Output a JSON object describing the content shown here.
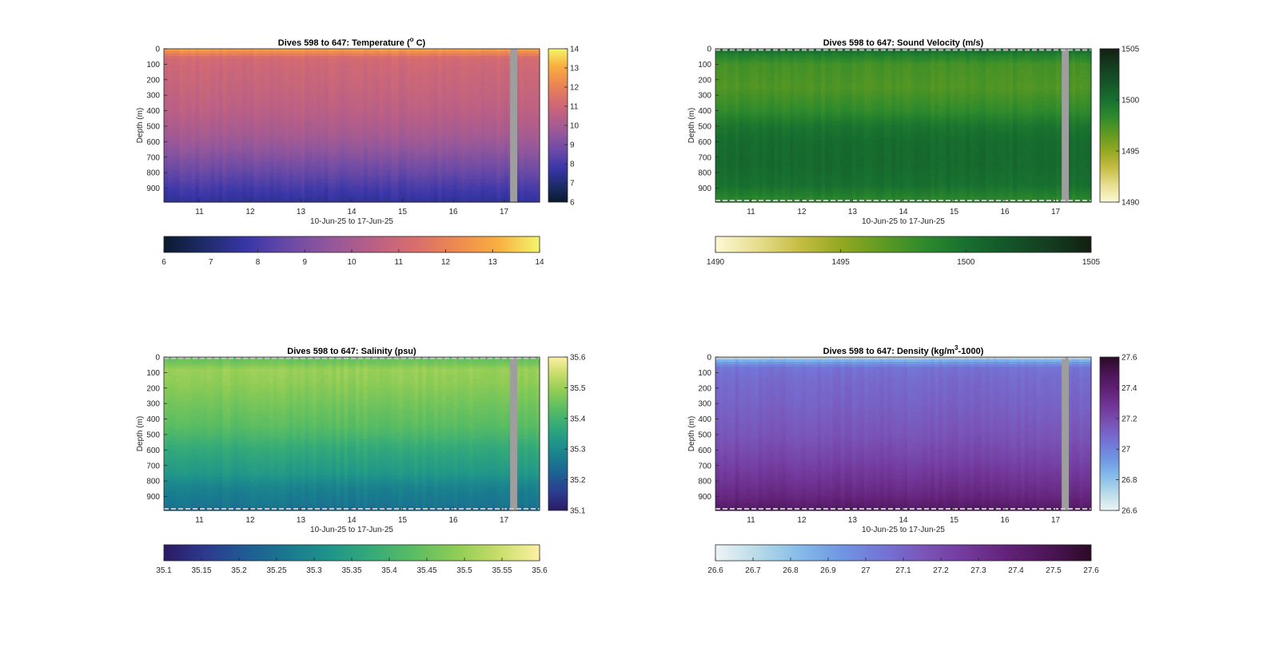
{
  "figure": {
    "background": "#ffffff"
  },
  "chart_data": [
    {
      "type": "heatmap",
      "variable": "temperature",
      "title": "Dives 598 to 647: Temperature (",
      "title_sup": "o",
      "title_end": " C)",
      "xlabel": "10-Jun-25 to 17-Jun-25",
      "ylabel": "Depth (m)",
      "x_ticks": [
        "11",
        "12",
        "13",
        "14",
        "15",
        "16",
        "17"
      ],
      "x_tick_values": [
        11,
        12,
        13,
        14,
        15,
        16,
        17
      ],
      "xlim": [
        10.3,
        17.7
      ],
      "y_ticks": [
        "0",
        "100",
        "200",
        "300",
        "400",
        "500",
        "600",
        "700",
        "800",
        "900"
      ],
      "ylim": [
        0,
        990
      ],
      "y_reversed": true,
      "gap_x_range": [
        17.12,
        17.26
      ],
      "gap_color": "#9e9e9e",
      "clim": [
        6,
        14
      ],
      "colorbar_right_ticks": [
        "6",
        "7",
        "8",
        "9",
        "10",
        "11",
        "12",
        "13",
        "14"
      ],
      "colorbar_bottom_ticks": [
        "6",
        "7",
        "8",
        "9",
        "10",
        "11",
        "12",
        "13",
        "14"
      ],
      "colormap": [
        "#0a1a2e",
        "#1e2c6b",
        "#3a36a8",
        "#6a4aa6",
        "#94579b",
        "#b95f86",
        "#d86d6e",
        "#ee8950",
        "#f8af3f",
        "#f4f56a"
      ],
      "profile": [
        [
          0,
          12.9
        ],
        [
          25,
          12.2
        ],
        [
          60,
          11.2
        ],
        [
          120,
          11.0
        ],
        [
          250,
          10.8
        ],
        [
          400,
          10.5
        ],
        [
          550,
          10.0
        ],
        [
          650,
          9.5
        ],
        [
          750,
          8.9
        ],
        [
          850,
          8.3
        ],
        [
          930,
          7.8
        ],
        [
          990,
          7.5
        ]
      ],
      "dashed_boundaries": false
    },
    {
      "type": "heatmap",
      "variable": "sound_velocity",
      "title": "Dives 598 to 647: Sound Velocity (m/s)",
      "xlabel": "10-Jun-25 to 17-Jun-25",
      "ylabel": "Depth (m)",
      "x_ticks": [
        "11",
        "12",
        "13",
        "14",
        "15",
        "16",
        "17"
      ],
      "x_tick_values": [
        11,
        12,
        13,
        14,
        15,
        16,
        17
      ],
      "xlim": [
        10.3,
        17.7
      ],
      "y_ticks": [
        "0",
        "100",
        "200",
        "300",
        "400",
        "500",
        "600",
        "700",
        "800",
        "900"
      ],
      "ylim": [
        0,
        990
      ],
      "y_reversed": true,
      "gap_x_range": [
        17.12,
        17.26
      ],
      "gap_color": "#9e9e9e",
      "clim": [
        1490,
        1505
      ],
      "colorbar_right_ticks": [
        "1490",
        "1495",
        "1500",
        "1505"
      ],
      "colorbar_bottom_ticks": [
        "1490",
        "1495",
        "1500",
        "1505"
      ],
      "colormap": [
        "#fdf8d5",
        "#e7de8f",
        "#c6bd45",
        "#94a821",
        "#5f9a22",
        "#2e8a2c",
        "#17702f",
        "#145528",
        "#143d20",
        "#121f12"
      ],
      "profile": [
        [
          0,
          1500.6
        ],
        [
          40,
          1499.0
        ],
        [
          100,
          1497.6
        ],
        [
          250,
          1497.2
        ],
        [
          400,
          1498.3
        ],
        [
          500,
          1499.7
        ],
        [
          600,
          1500.3
        ],
        [
          750,
          1500.4
        ],
        [
          880,
          1500.0
        ],
        [
          950,
          1499.0
        ],
        [
          990,
          1498.2
        ]
      ],
      "dashed_boundaries": true
    },
    {
      "type": "heatmap",
      "variable": "salinity",
      "title": "Dives 598 to 647: Salinity (psu)",
      "xlabel": "10-Jun-25 to 17-Jun-25",
      "ylabel": "Depth (m)",
      "x_ticks": [
        "11",
        "12",
        "13",
        "14",
        "15",
        "16",
        "17"
      ],
      "x_tick_values": [
        11,
        12,
        13,
        14,
        15,
        16,
        17
      ],
      "xlim": [
        10.3,
        17.7
      ],
      "y_ticks": [
        "0",
        "100",
        "200",
        "300",
        "400",
        "500",
        "600",
        "700",
        "800",
        "900"
      ],
      "ylim": [
        0,
        990
      ],
      "y_reversed": true,
      "gap_x_range": [
        17.12,
        17.26
      ],
      "gap_color": "#9e9e9e",
      "clim": [
        35.1,
        35.6
      ],
      "colorbar_right_ticks": [
        "35.1",
        "35.2",
        "35.3",
        "35.4",
        "35.5",
        "35.6"
      ],
      "colorbar_bottom_ticks": [
        "35.1",
        "35.15",
        "35.2",
        "35.25",
        "35.3",
        "35.35",
        "35.4",
        "35.45",
        "35.5",
        "35.55",
        "35.6"
      ],
      "colormap": [
        "#2b1a63",
        "#2c3a8f",
        "#1f5c94",
        "#197a8f",
        "#1f958a",
        "#36ab78",
        "#5bbd62",
        "#8fcc55",
        "#c6dd69",
        "#fdf0a3"
      ],
      "profile": [
        [
          0,
          35.44
        ],
        [
          40,
          35.46
        ],
        [
          80,
          35.5
        ],
        [
          160,
          35.49
        ],
        [
          300,
          35.46
        ],
        [
          450,
          35.43
        ],
        [
          600,
          35.37
        ],
        [
          750,
          35.33
        ],
        [
          850,
          35.28
        ],
        [
          950,
          35.26
        ],
        [
          990,
          35.24
        ]
      ],
      "dashed_boundaries": true
    },
    {
      "type": "heatmap",
      "variable": "density",
      "title": "Dives 598 to 647: Density (kg/m",
      "title_sup": "3",
      "title_end": "-1000)",
      "xlabel": "10-Jun-25 to 17-Jun-25",
      "ylabel": "Depth (m)",
      "x_ticks": [
        "11",
        "12",
        "13",
        "14",
        "15",
        "16",
        "17"
      ],
      "x_tick_values": [
        11,
        12,
        13,
        14,
        15,
        16,
        17
      ],
      "xlim": [
        10.3,
        17.7
      ],
      "y_ticks": [
        "0",
        "100",
        "200",
        "300",
        "400",
        "500",
        "600",
        "700",
        "800",
        "900"
      ],
      "ylim": [
        0,
        990
      ],
      "y_reversed": true,
      "gap_x_range": [
        17.12,
        17.26
      ],
      "gap_color": "#9e9e9e",
      "clim": [
        26.6,
        27.6
      ],
      "colorbar_right_ticks": [
        "26.6",
        "26.8",
        "27",
        "27.2",
        "27.4",
        "27.6"
      ],
      "colorbar_bottom_ticks": [
        "26.6",
        "26.7",
        "26.8",
        "26.9",
        "27",
        "27.1",
        "27.2",
        "27.3",
        "27.4",
        "27.5",
        "27.6"
      ],
      "colormap": [
        "#eef4f5",
        "#b8dbe8",
        "#86bce9",
        "#6f97e2",
        "#7474d6",
        "#7a55b8",
        "#73399c",
        "#622278",
        "#4b1556",
        "#2b0a26"
      ],
      "profile": [
        [
          0,
          26.72
        ],
        [
          30,
          26.9
        ],
        [
          70,
          27.05
        ],
        [
          150,
          27.08
        ],
        [
          300,
          27.11
        ],
        [
          500,
          27.16
        ],
        [
          650,
          27.22
        ],
        [
          800,
          27.3
        ],
        [
          900,
          27.36
        ],
        [
          960,
          27.42
        ],
        [
          990,
          27.46
        ]
      ],
      "dashed_boundaries": true
    }
  ]
}
